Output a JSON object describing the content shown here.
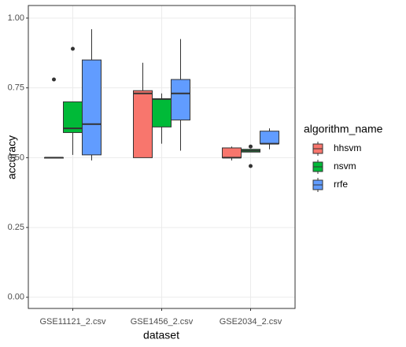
{
  "chart_data": {
    "type": "boxplot",
    "x_label": "dataset",
    "y_label": "accuracy",
    "categories": [
      "GSE11121_2.csv",
      "GSE1456_2.csv",
      "GSE2034_2.csv"
    ],
    "legend_title": "algorithm_name",
    "series": [
      {
        "name": "hhsvm",
        "color": "#F8766D",
        "values": [
          {
            "min": 0.5,
            "q1": 0.5,
            "median": 0.5,
            "q3": 0.5,
            "max": 0.5,
            "outliers": [
              0.78
            ]
          },
          {
            "min": 0.5,
            "q1": 0.5,
            "median": 0.73,
            "q3": 0.74,
            "max": 0.84,
            "outliers": []
          },
          {
            "min": 0.49,
            "q1": 0.5,
            "median": 0.5,
            "q3": 0.535,
            "max": 0.54,
            "outliers": []
          }
        ]
      },
      {
        "name": "nsvm",
        "color": "#00BA38",
        "values": [
          {
            "min": 0.51,
            "q1": 0.59,
            "median": 0.605,
            "q3": 0.7,
            "max": 0.7,
            "outliers": [
              0.89
            ]
          },
          {
            "min": 0.55,
            "q1": 0.61,
            "median": 0.71,
            "q3": 0.71,
            "max": 0.73,
            "outliers": []
          },
          {
            "min": 0.52,
            "q1": 0.52,
            "median": 0.525,
            "q3": 0.53,
            "max": 0.53,
            "outliers": [
              0.54,
              0.47
            ]
          }
        ]
      },
      {
        "name": "rrfe",
        "color": "#619CFF",
        "values": [
          {
            "min": 0.49,
            "q1": 0.51,
            "median": 0.62,
            "q3": 0.85,
            "max": 0.96,
            "outliers": []
          },
          {
            "min": 0.525,
            "q1": 0.635,
            "median": 0.73,
            "q3": 0.78,
            "max": 0.925,
            "outliers": []
          },
          {
            "min": 0.53,
            "q1": 0.55,
            "median": 0.55,
            "q3": 0.595,
            "max": 0.605,
            "outliers": []
          }
        ]
      }
    ],
    "ylim": [
      -0.04,
      1.045
    ],
    "yticks": [
      {
        "value": 0,
        "label": "0.00"
      },
      {
        "value": 0.25,
        "label": "0.25"
      },
      {
        "value": 0.5,
        "label": "0.50"
      },
      {
        "value": 0.75,
        "label": "0.75"
      },
      {
        "value": 1,
        "label": "1.00"
      }
    ],
    "grid": true,
    "legend": "right"
  }
}
